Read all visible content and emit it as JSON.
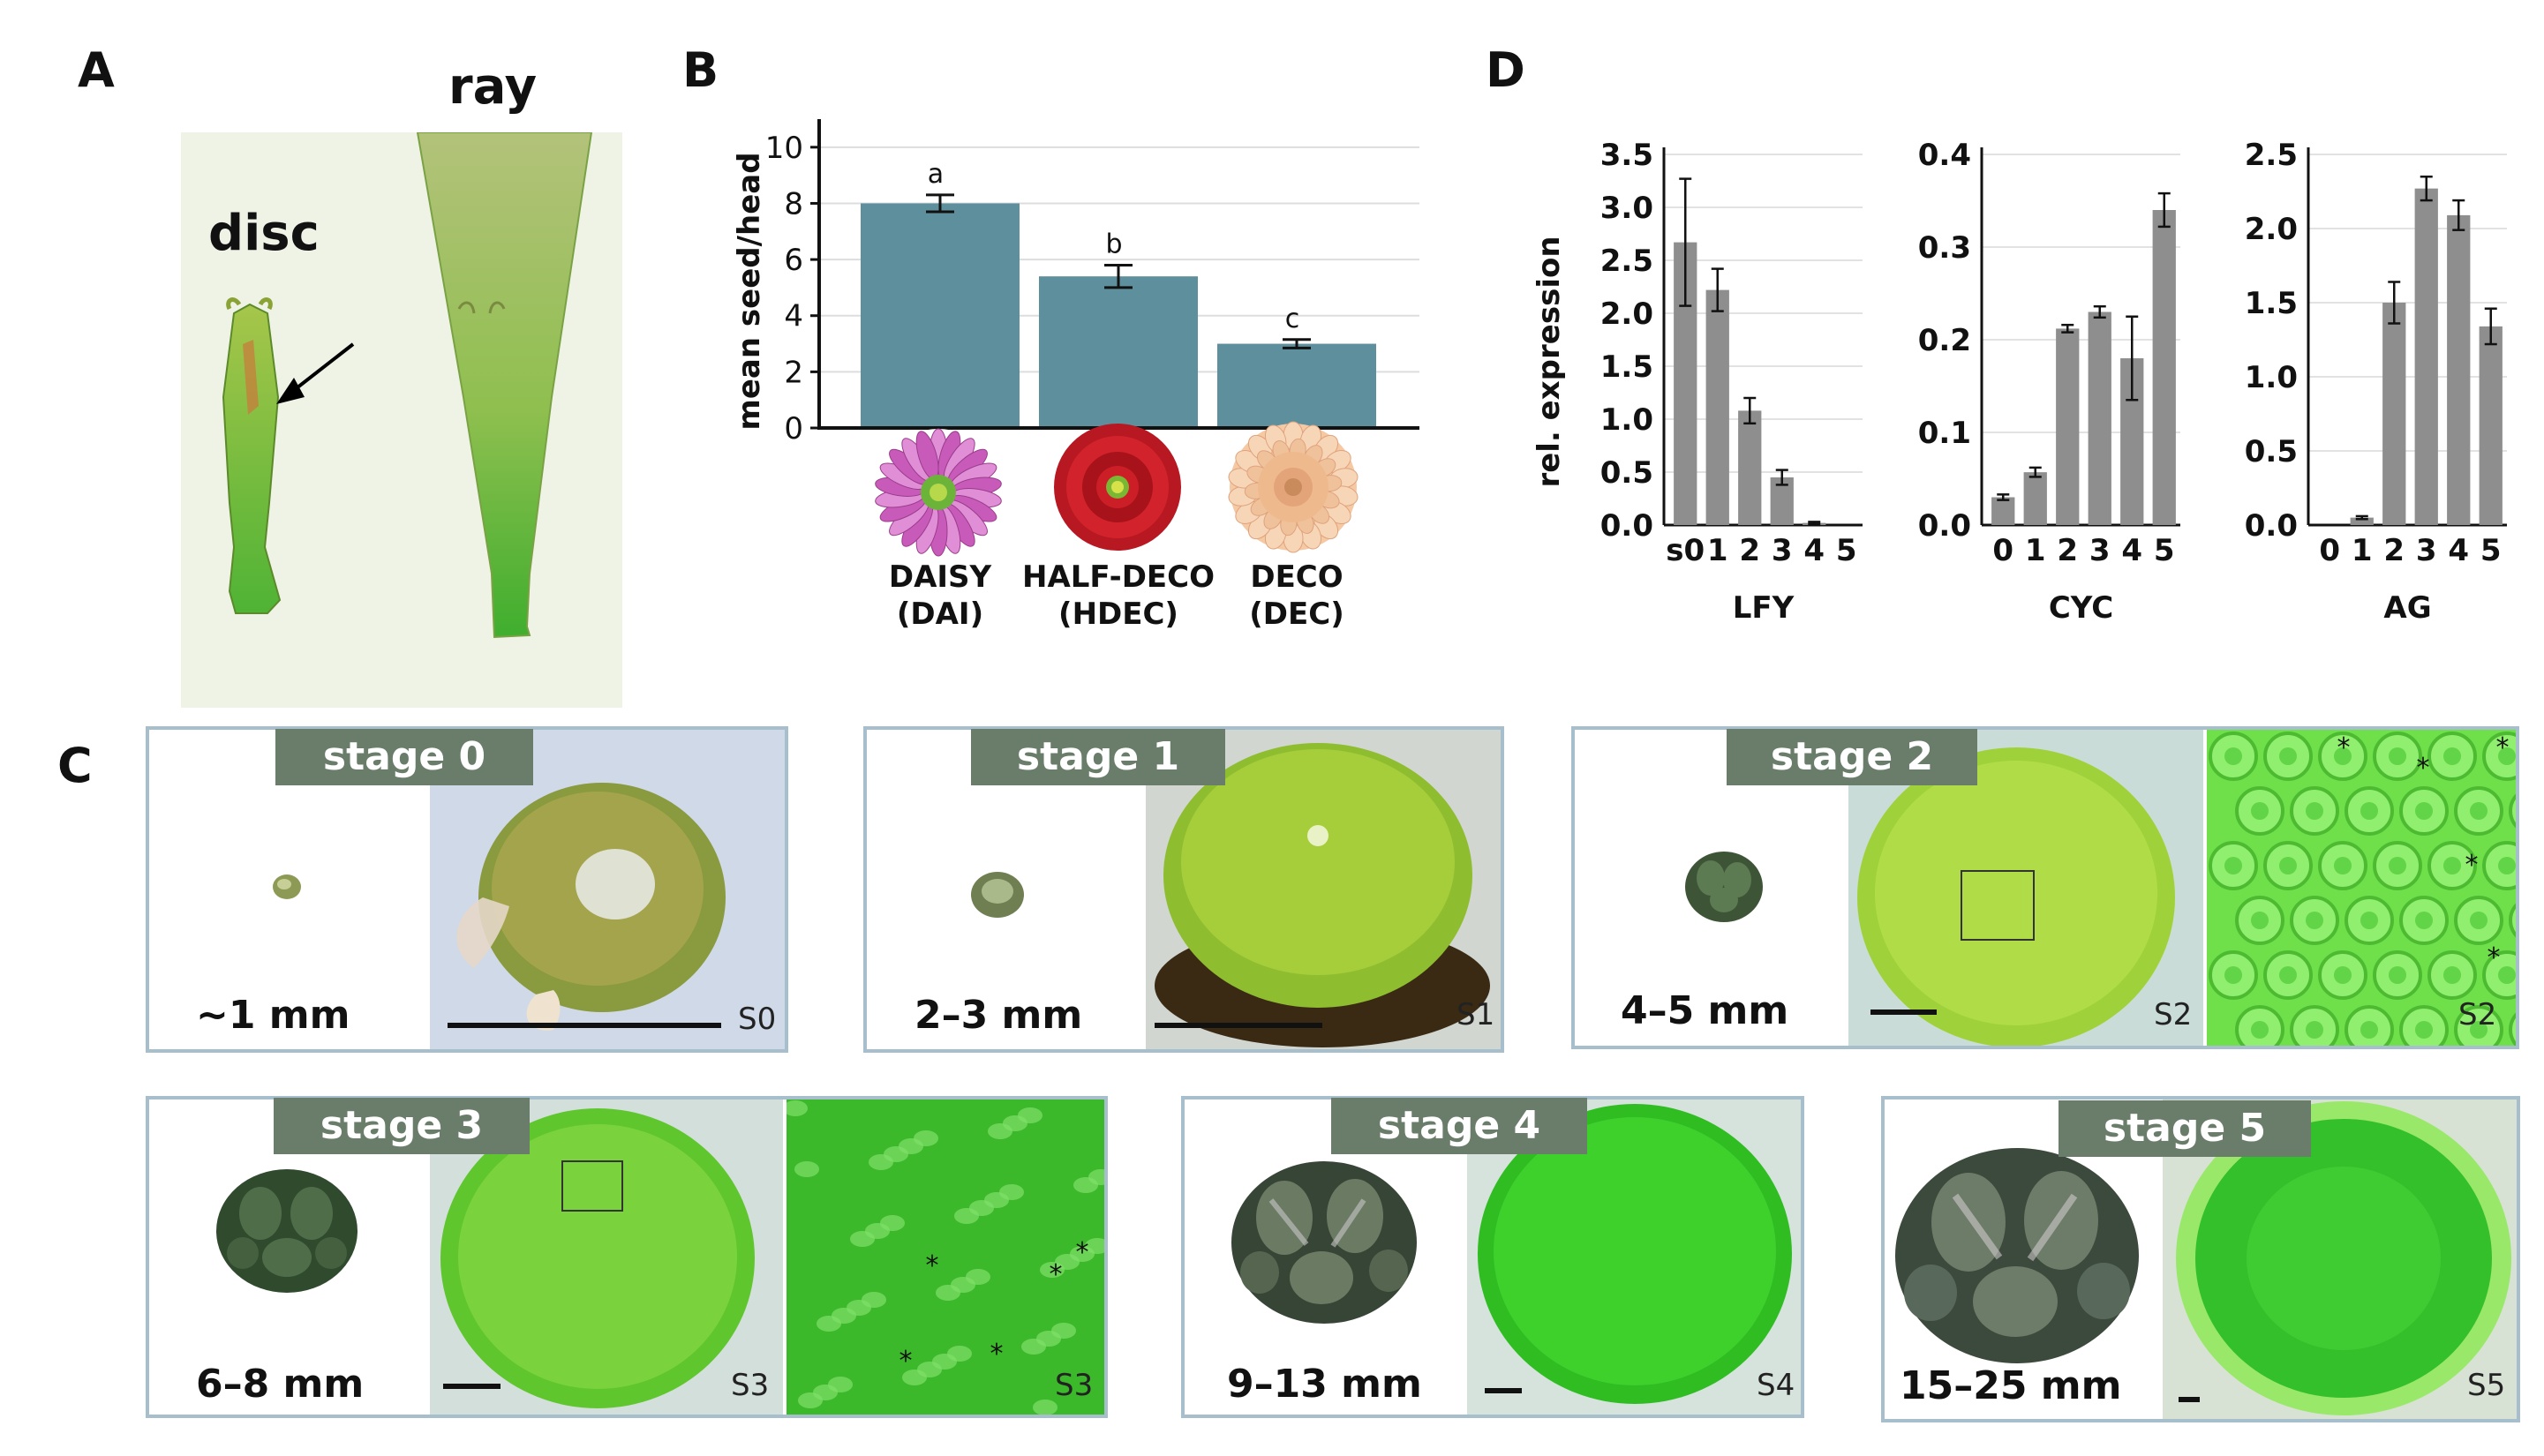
{
  "panels": {
    "A": {
      "letter": "A",
      "disc_label": "disc",
      "ray_label": "ray"
    },
    "B": {
      "letter": "B",
      "ylabel": "mean seed/head",
      "yticks": [
        "0",
        "2",
        "4",
        "6",
        "8",
        "10"
      ],
      "categories": [
        {
          "name": "DAISY",
          "abbr": "(DAI)",
          "sig": "a",
          "value": 8.0,
          "err": 0.3
        },
        {
          "name": "HALF-DECO",
          "abbr": "(HDEC)",
          "sig": "b",
          "value": 5.4,
          "err": 0.4
        },
        {
          "name": "DECO",
          "abbr": "(DEC)",
          "sig": "c",
          "value": 3.0,
          "err": 0.15
        }
      ],
      "bar_color": "#5e8f9c"
    },
    "C": {
      "letter": "C",
      "stages": [
        {
          "label": "stage 0",
          "size": "~1 mm",
          "codes": [
            "S0"
          ]
        },
        {
          "label": "stage 1",
          "size": "2–3 mm",
          "codes": [
            "S1"
          ]
        },
        {
          "label": "stage 2",
          "size": "4–5 mm",
          "codes": [
            "S2",
            "S2"
          ]
        },
        {
          "label": "stage 3",
          "size": "6–8 mm",
          "codes": [
            "S3",
            "S3"
          ]
        },
        {
          "label": "stage 4",
          "size": "9–13 mm",
          "codes": [
            "S4"
          ]
        },
        {
          "label": "stage 5",
          "size": "15–25 mm",
          "codes": [
            "S5"
          ]
        }
      ]
    },
    "D": {
      "letter": "D",
      "ylabel": "rel. expression"
    }
  },
  "chart_data": [
    {
      "type": "bar",
      "panel": "B",
      "categories": [
        "DAISY (DAI)",
        "HALF-DECO (HDEC)",
        "DECO (DEC)"
      ],
      "values": [
        8.0,
        5.4,
        3.0
      ],
      "errors": [
        0.3,
        0.4,
        0.15
      ],
      "significance": [
        "a",
        "b",
        "c"
      ],
      "ylabel": "mean seed/head",
      "ylim": [
        0,
        11
      ],
      "grid": true
    },
    {
      "type": "bar",
      "panel": "D",
      "title": "LFY",
      "categories": [
        "s0",
        "1",
        "2",
        "3",
        "4",
        "5"
      ],
      "values": [
        2.67,
        2.22,
        1.08,
        0.45,
        0.02,
        0.0
      ],
      "errors": [
        0.6,
        0.2,
        0.12,
        0.07,
        0.01,
        0.0
      ],
      "ylabel": "rel. expression",
      "yticks": [
        0.0,
        0.5,
        1.0,
        1.5,
        2.0,
        2.5,
        3.0,
        3.5
      ],
      "ytick_labels": [
        "0.0",
        "0.5",
        "1.0",
        "1.5",
        "2.0",
        "2.5",
        "3.0",
        "3.5"
      ],
      "ylim": [
        0,
        3.5
      ]
    },
    {
      "type": "bar",
      "panel": "D",
      "title": "CYC",
      "categories": [
        "0",
        "1",
        "2",
        "3",
        "4",
        "5"
      ],
      "values": [
        0.03,
        0.057,
        0.212,
        0.23,
        0.18,
        0.34
      ],
      "errors": [
        0.003,
        0.005,
        0.004,
        0.006,
        0.045,
        0.018
      ],
      "yticks": [
        0.0,
        0.1,
        0.2,
        0.3,
        0.4
      ],
      "ytick_labels": [
        "0.0",
        "0.1",
        "0.2",
        "0.3",
        "0.4"
      ],
      "ylim": [
        0,
        0.4
      ]
    },
    {
      "type": "bar",
      "panel": "D",
      "title": "AG",
      "categories": [
        "0",
        "1",
        "2",
        "3",
        "4",
        "5"
      ],
      "values": [
        0.0,
        0.05,
        1.5,
        2.27,
        2.09,
        1.34
      ],
      "errors": [
        0.0,
        0.01,
        0.14,
        0.08,
        0.1,
        0.12
      ],
      "yticks": [
        0.0,
        0.5,
        1.0,
        1.5,
        2.0,
        2.5
      ],
      "ytick_labels": [
        "0.0",
        "0.5",
        "1.0",
        "1.5",
        "2.0",
        "2.5"
      ],
      "ylim": [
        0,
        2.5
      ]
    }
  ]
}
